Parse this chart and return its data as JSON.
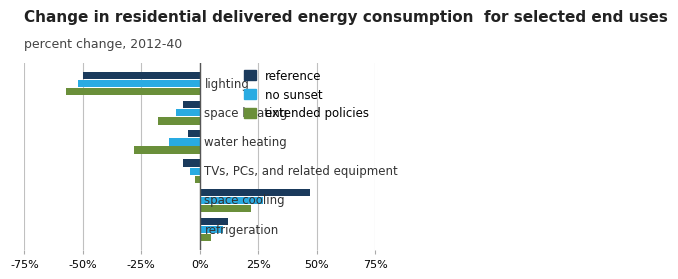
{
  "title": "Change in residential delivered energy consumption  for selected end uses",
  "subtitle": "percent change, 2012-40",
  "categories": [
    "lighting",
    "space heating",
    "water heating",
    "TVs, PCs, and related equipment",
    "space cooling",
    "refrigeration"
  ],
  "series": {
    "reference": [
      -50,
      -7,
      -5,
      -7,
      47,
      12
    ],
    "no sunset": [
      -52,
      -10,
      -13,
      -4,
      27,
      10
    ],
    "extended policies": [
      -57,
      -18,
      -28,
      -2,
      22,
      5
    ]
  },
  "colors": {
    "reference": "#1a3a5c",
    "no sunset": "#29abe2",
    "extended policies": "#6a8f3a"
  },
  "xlim": [
    -75,
    75
  ],
  "xticks": [
    -75,
    -50,
    -25,
    0,
    25,
    50,
    75
  ],
  "xtick_labels": [
    "-75%",
    "-50%",
    "-25%",
    "0%",
    "25%",
    "50%",
    "75%"
  ],
  "bar_height": 0.25,
  "bar_gap": 0.03,
  "background_color": "#ffffff",
  "grid_color": "#c0c0c0",
  "title_fontsize": 11,
  "subtitle_fontsize": 9,
  "tick_fontsize": 8,
  "label_fontsize": 8.5,
  "legend_fontsize": 8.5
}
